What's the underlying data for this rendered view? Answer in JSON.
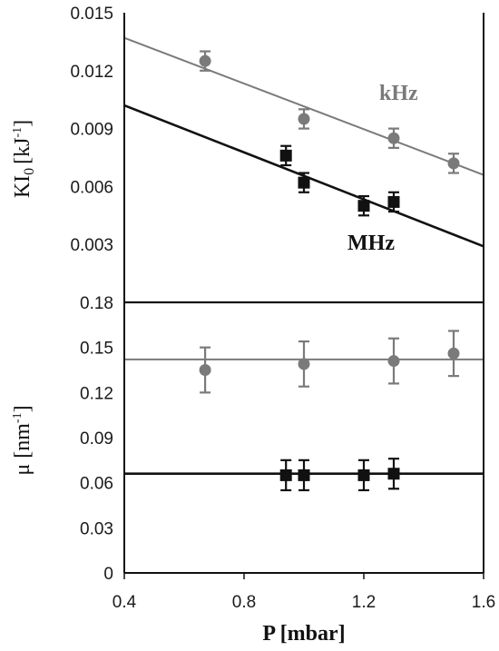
{
  "chart_data": [
    {
      "type": "scatter",
      "panel": "top",
      "ylabel_main": "KI",
      "ylabel_sub": "0",
      "ylabel_unit": "[kJ",
      "ylabel_sup": "-1",
      "ylabel_close": "]",
      "ylim": [
        0,
        0.015
      ],
      "yticks": [
        "0.015",
        "0.012",
        "0.009",
        "0.006",
        "0.003"
      ],
      "ytick_values": [
        0.015,
        0.012,
        0.009,
        0.006,
        0.003
      ],
      "xlim": [
        0.4,
        1.6
      ],
      "series": [
        {
          "name": "kHz",
          "marker": "circle",
          "color": "#7a7a7a",
          "x": [
            0.67,
            1.0,
            1.3,
            1.5
          ],
          "y": [
            0.0125,
            0.0095,
            0.0085,
            0.0072
          ],
          "err": [
            0.0005,
            0.0005,
            0.0005,
            0.0005
          ],
          "fit": {
            "x": [
              0.4,
              1.6
            ],
            "y": [
              0.0137,
              0.0066
            ]
          }
        },
        {
          "name": "MHz",
          "marker": "square",
          "color": "#111111",
          "x": [
            0.94,
            1.0,
            1.2,
            1.3
          ],
          "y": [
            0.0076,
            0.0062,
            0.005,
            0.0052
          ],
          "err": [
            0.0005,
            0.0005,
            0.0005,
            0.0005
          ],
          "fit": {
            "x": [
              0.4,
              1.6
            ],
            "y": [
              0.0102,
              0.0029
            ]
          }
        }
      ]
    },
    {
      "type": "scatter",
      "panel": "bottom",
      "ylabel_main": "μ [nm",
      "ylabel_sup": "-1",
      "ylabel_close": "]",
      "ylim": [
        0,
        0.18
      ],
      "yticks": [
        "0.18",
        "0.15",
        "0.12",
        "0.09",
        "0.06",
        "0.03",
        "0"
      ],
      "ytick_values": [
        0.18,
        0.15,
        0.12,
        0.09,
        0.06,
        0.03,
        0
      ],
      "xlim": [
        0.4,
        1.6
      ],
      "xticks": [
        "0.4",
        "0.8",
        "1.2",
        "1.6"
      ],
      "xtick_values": [
        0.4,
        0.8,
        1.2,
        1.6
      ],
      "xlabel": "P [mbar]",
      "series": [
        {
          "name": "kHz",
          "marker": "circle",
          "color": "#7a7a7a",
          "x": [
            0.67,
            1.0,
            1.3,
            1.5
          ],
          "y": [
            0.135,
            0.139,
            0.141,
            0.146
          ],
          "err": [
            0.015,
            0.015,
            0.015,
            0.015
          ],
          "fit": {
            "x": [
              0.4,
              1.6
            ],
            "y": [
              0.142,
              0.142
            ]
          }
        },
        {
          "name": "MHz",
          "marker": "square",
          "color": "#111111",
          "x": [
            0.94,
            1.0,
            1.2,
            1.3
          ],
          "y": [
            0.065,
            0.065,
            0.065,
            0.066
          ],
          "err": [
            0.01,
            0.01,
            0.01,
            0.01
          ],
          "fit": {
            "x": [
              0.4,
              1.6
            ],
            "y": [
              0.066,
              0.066
            ]
          }
        }
      ]
    }
  ]
}
